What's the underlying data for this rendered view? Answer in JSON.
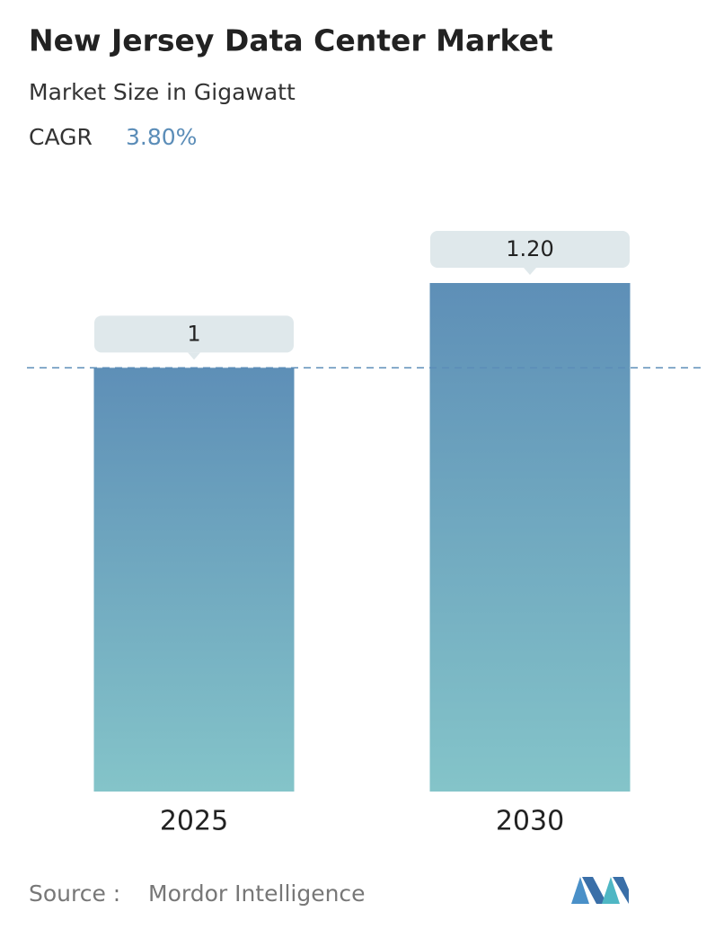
{
  "chart_data": {
    "type": "bar",
    "title": "New Jersey Data Center Market",
    "subtitle": "Market Size in Gigawatt",
    "cagr_label": "CAGR",
    "cagr": "3.80%",
    "categories": [
      "2025",
      "2030"
    ],
    "values": [
      1,
      1.2
    ],
    "value_labels": [
      "1",
      "1.20"
    ],
    "source_label": "Source :",
    "source": "Mordor Intelligence"
  }
}
